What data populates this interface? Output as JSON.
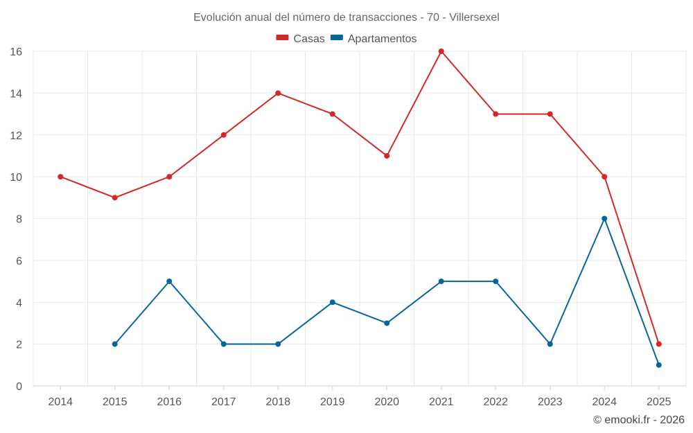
{
  "chart_data": {
    "type": "line",
    "title": "Evolución anual del número de transacciones - 70 - Villersexel",
    "xlabel": "",
    "ylabel": "",
    "categories": [
      "2014",
      "2015",
      "2016",
      "2017",
      "2018",
      "2019",
      "2020",
      "2021",
      "2022",
      "2023",
      "2024",
      "2025"
    ],
    "ylim": [
      0,
      16
    ],
    "yticks": [
      0,
      2,
      4,
      6,
      8,
      10,
      12,
      14,
      16
    ],
    "grid": true,
    "legend_position": "top-center",
    "series": [
      {
        "name": "Casas",
        "color": "#d62728",
        "values": [
          10,
          9,
          10,
          12,
          14,
          13,
          11,
          16,
          13,
          13,
          10,
          2
        ]
      },
      {
        "name": "Apartamentos",
        "color": "#05669d",
        "values": [
          null,
          2,
          5,
          2,
          2,
          4,
          3,
          5,
          5,
          2,
          8,
          1
        ]
      }
    ]
  },
  "credit": "© emooki.fr - 2026"
}
